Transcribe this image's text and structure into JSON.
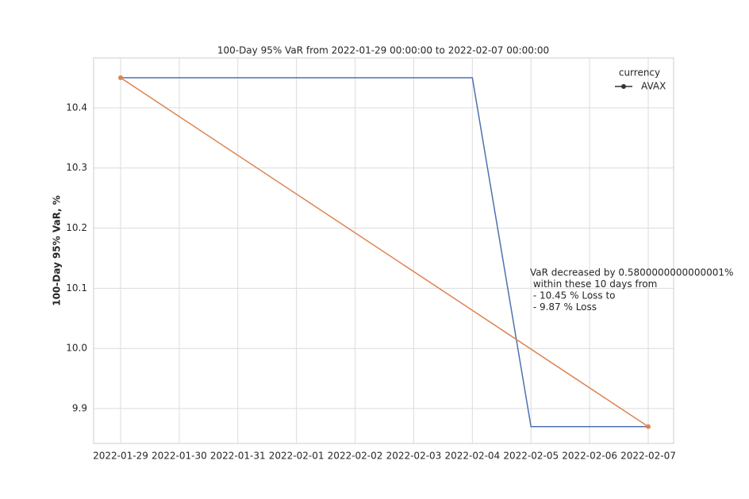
{
  "chart_data": {
    "type": "line",
    "title": "100-Day 95% VaR from 2022-01-29 00:00:00 to 2022-02-07 00:00:00",
    "ylabel": "100-Day 95% VaR, %",
    "x": [
      "2022-01-29",
      "2022-01-30",
      "2022-01-31",
      "2022-02-01",
      "2022-02-02",
      "2022-02-03",
      "2022-02-04",
      "2022-02-05",
      "2022-02-06",
      "2022-02-07"
    ],
    "series": [
      {
        "name": "AVAX",
        "color": "#4c72b0",
        "values": [
          10.45,
          10.45,
          10.45,
          10.45,
          10.45,
          10.45,
          10.45,
          9.87,
          9.87,
          9.87
        ]
      },
      {
        "color": "#dd8452",
        "x": [
          "2022-01-29",
          "2022-02-07"
        ],
        "values": [
          10.45,
          9.87
        ],
        "markers": true
      }
    ],
    "legend_title": "currency",
    "legend_position": "upper right",
    "legend_marker_color": "#333333",
    "annotation": [
      "VaR decreased by 0.5800000000000001%",
      " within these 10 days from",
      " - 10.45 % Loss to",
      " - 9.87 % Loss"
    ],
    "ylim": [
      9.842,
      10.483
    ],
    "yticks": [
      9.9,
      {
        "value": 10,
        "label": "10.0"
      },
      10.1,
      10.2,
      10.3,
      10.4
    ],
    "grid": true
  }
}
